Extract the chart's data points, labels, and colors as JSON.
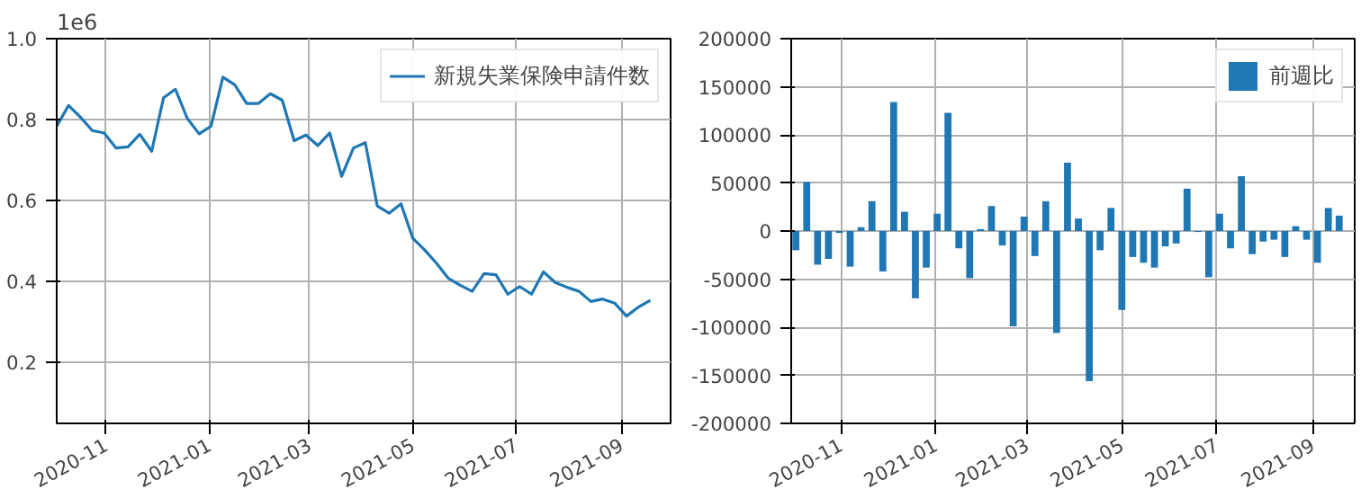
{
  "chart_data": [
    {
      "type": "line",
      "annotations": [
        "1e6"
      ],
      "x": [
        "2020-10-03",
        "2020-10-10",
        "2020-10-17",
        "2020-10-24",
        "2020-10-31",
        "2020-11-07",
        "2020-11-14",
        "2020-11-21",
        "2020-11-28",
        "2020-12-05",
        "2020-12-12",
        "2020-12-19",
        "2020-12-26",
        "2021-01-02",
        "2021-01-09",
        "2021-01-16",
        "2021-01-23",
        "2021-01-30",
        "2021-02-06",
        "2021-02-13",
        "2021-02-20",
        "2021-02-27",
        "2021-03-06",
        "2021-03-13",
        "2021-03-20",
        "2021-03-27",
        "2021-04-03",
        "2021-04-10",
        "2021-04-17",
        "2021-04-24",
        "2021-05-01",
        "2021-05-08",
        "2021-05-15",
        "2021-05-22",
        "2021-05-29",
        "2021-06-05",
        "2021-06-12",
        "2021-06-19",
        "2021-06-26",
        "2021-07-03",
        "2021-07-10",
        "2021-07-17",
        "2021-07-24",
        "2021-07-31",
        "2021-08-07",
        "2021-08-14",
        "2021-08-21",
        "2021-08-28",
        "2021-09-04",
        "2021-09-11",
        "2021-09-18"
      ],
      "series": [
        {
          "name": "新規失業保険申請件数",
          "color": "#1f77b4",
          "values": [
            0.784,
            0.835,
            0.806,
            0.773,
            0.767,
            0.73,
            0.733,
            0.764,
            0.722,
            0.854,
            0.875,
            0.803,
            0.765,
            0.784,
            0.905,
            0.886,
            0.84,
            0.84,
            0.864,
            0.848,
            0.748,
            0.762,
            0.736,
            0.767,
            0.66,
            0.73,
            0.743,
            0.587,
            0.569,
            0.592,
            0.507,
            0.478,
            0.445,
            0.408,
            0.391,
            0.376,
            0.42,
            0.417,
            0.369,
            0.388,
            0.369,
            0.424,
            0.398,
            0.386,
            0.376,
            0.351,
            0.357,
            0.347,
            0.315,
            0.337,
            0.354
          ]
        }
      ],
      "xlim": [
        "2020-10-03",
        "2021-09-30"
      ],
      "xticks": [
        {
          "value": "2020-11-01",
          "label": "2020-11"
        },
        {
          "value": "2021-01-01",
          "label": "2021-01"
        },
        {
          "value": "2021-03-01",
          "label": "2021-03"
        },
        {
          "value": "2021-05-01",
          "label": "2021-05"
        },
        {
          "value": "2021-07-01",
          "label": "2021-07"
        },
        {
          "value": "2021-09-01",
          "label": "2021-09"
        }
      ],
      "ylim": [
        0.05,
        1.0
      ],
      "yticks": [
        0.2,
        0.4,
        0.6,
        0.8,
        {
          "value": 1.0,
          "label": "1.0"
        }
      ],
      "grid": true,
      "legend": "top right"
    },
    {
      "type": "bar",
      "x": [
        "2020-10-03",
        "2020-10-10",
        "2020-10-17",
        "2020-10-24",
        "2020-10-31",
        "2020-11-07",
        "2020-11-14",
        "2020-11-21",
        "2020-11-28",
        "2020-12-05",
        "2020-12-12",
        "2020-12-19",
        "2020-12-26",
        "2021-01-02",
        "2021-01-09",
        "2021-01-16",
        "2021-01-23",
        "2021-01-30",
        "2021-02-06",
        "2021-02-13",
        "2021-02-20",
        "2021-02-27",
        "2021-03-06",
        "2021-03-13",
        "2021-03-20",
        "2021-03-27",
        "2021-04-03",
        "2021-04-10",
        "2021-04-17",
        "2021-04-24",
        "2021-05-01",
        "2021-05-08",
        "2021-05-15",
        "2021-05-22",
        "2021-05-29",
        "2021-06-05",
        "2021-06-12",
        "2021-06-19",
        "2021-06-26",
        "2021-07-03",
        "2021-07-10",
        "2021-07-17",
        "2021-07-24",
        "2021-07-31",
        "2021-08-07",
        "2021-08-14",
        "2021-08-21",
        "2021-08-28",
        "2021-09-04",
        "2021-09-11",
        "2021-09-18"
      ],
      "series": [
        {
          "name": "前週比",
          "color": "#1f77b4",
          "values": [
            -20000,
            51000,
            -35000,
            -29000,
            -2000,
            -37000,
            4000,
            31000,
            -42000,
            134000,
            20000,
            -70000,
            -38000,
            18000,
            123000,
            -18000,
            -49000,
            2000,
            26000,
            -15000,
            -99000,
            15000,
            -26000,
            31000,
            -106000,
            71000,
            13000,
            -156000,
            -20000,
            24000,
            -82000,
            -27000,
            -33000,
            -38000,
            -16000,
            -13000,
            44000,
            -1000,
            -48000,
            18000,
            -18000,
            57000,
            -24000,
            -11000,
            -9000,
            -27000,
            5000,
            -9000,
            -33000,
            24000,
            16000
          ]
        }
      ],
      "xlim": [
        "2020-09-30",
        "2021-09-28"
      ],
      "xticks": [
        {
          "value": "2020-11-01",
          "label": "2020-11"
        },
        {
          "value": "2021-01-01",
          "label": "2021-01"
        },
        {
          "value": "2021-03-01",
          "label": "2021-03"
        },
        {
          "value": "2021-05-01",
          "label": "2021-05"
        },
        {
          "value": "2021-07-01",
          "label": "2021-07"
        },
        {
          "value": "2021-09-01",
          "label": "2021-09"
        }
      ],
      "ylim": [
        -200000,
        200000
      ],
      "yticks": [
        -200000,
        -150000,
        -100000,
        -50000,
        0,
        50000,
        100000,
        150000,
        200000
      ],
      "grid": true,
      "legend": "top right"
    }
  ]
}
